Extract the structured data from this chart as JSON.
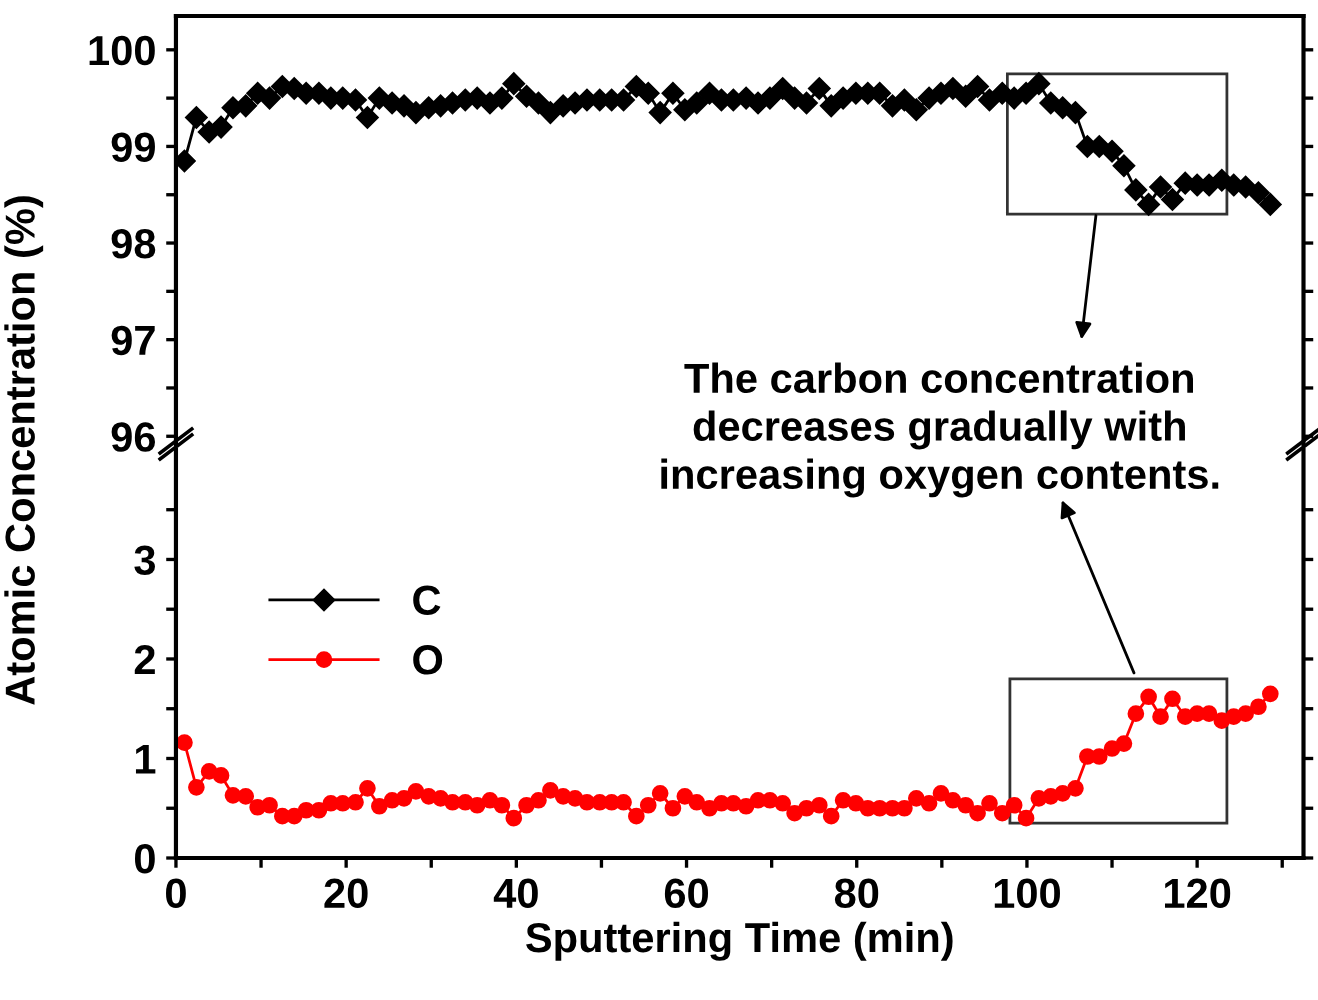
{
  "chart_data": [
    {
      "type": "line",
      "ylabel": "Atomic Concentration (%)",
      "marker": "diamond",
      "line_style": "solid",
      "tick_labels": "y",
      "annotations": [
        "The carbon concentration\ndecreases gradually with\nincreasing oxygen contents."
      ],
      "xlim": [
        0,
        132.5
      ],
      "ylim": [
        95.92,
        100.35
      ],
      "yticks": [
        96,
        {
          "value": 96.5,
          "label": null
        },
        97,
        {
          "value": 97.5,
          "label": null
        },
        98,
        {
          "value": 98.5,
          "label": null
        },
        99,
        {
          "value": 99.5,
          "label": null
        },
        100
      ],
      "series": [
        {
          "name": "C",
          "color": "#000000",
          "x": [
            1,
            2.4,
            3.9,
            5.3,
            6.7,
            8.2,
            9.6,
            11,
            12.5,
            13.9,
            15.3,
            16.8,
            18.2,
            19.6,
            21.1,
            22.5,
            23.9,
            25.4,
            26.8,
            28.2,
            29.7,
            31.1,
            32.5,
            34,
            35.4,
            36.9,
            38.3,
            39.7,
            41.2,
            42.6,
            44,
            45.5,
            46.9,
            48.3,
            49.8,
            51.2,
            52.6,
            54.1,
            55.5,
            56.9,
            58.4,
            59.8,
            61.2,
            62.7,
            64.1,
            65.5,
            67,
            68.4,
            69.8,
            71.3,
            72.7,
            74.1,
            75.6,
            77,
            78.4,
            79.9,
            81.3,
            82.7,
            84.2,
            85.6,
            87,
            88.5,
            89.9,
            91.3,
            92.8,
            94.2,
            95.6,
            97.1,
            98.5,
            99.9,
            101.4,
            102.8,
            104.2,
            105.7,
            107.1,
            108.5,
            110,
            111.4,
            112.8,
            114.3,
            115.7,
            117.1,
            118.6,
            120,
            121.4,
            122.9,
            124.3,
            125.7,
            127.2,
            128.6
          ],
          "values": [
            98.85,
            99.3,
            99.15,
            99.2,
            99.4,
            99.42,
            99.55,
            99.5,
            99.62,
            99.6,
            99.55,
            99.55,
            99.5,
            99.5,
            99.48,
            99.3,
            99.5,
            99.45,
            99.42,
            99.35,
            99.4,
            99.42,
            99.45,
            99.48,
            99.5,
            99.45,
            99.5,
            99.65,
            99.52,
            99.45,
            99.35,
            99.42,
            99.45,
            99.48,
            99.48,
            99.48,
            99.48,
            99.62,
            99.55,
            99.35,
            99.55,
            99.38,
            99.45,
            99.55,
            99.48,
            99.48,
            99.5,
            99.45,
            99.5,
            99.6,
            99.5,
            99.45,
            99.6,
            99.42,
            99.5,
            99.55,
            99.55,
            99.55,
            99.42,
            99.48,
            99.38,
            99.5,
            99.55,
            99.6,
            99.52,
            99.62,
            99.48,
            99.55,
            99.5,
            99.55,
            99.65,
            99.45,
            99.4,
            99.35,
            99.0,
            99.0,
            98.95,
            98.8,
            98.55,
            98.4,
            98.58,
            98.45,
            98.62,
            98.6,
            98.6,
            98.65,
            98.6,
            98.58,
            98.52,
            98.4
          ]
        }
      ]
    },
    {
      "type": "line",
      "xlabel": "Sputtering Time (min)",
      "marker": "circle",
      "line_style": "solid",
      "legend": "center left",
      "xlim": [
        0,
        132.5
      ],
      "ylim": [
        0,
        4.1
      ],
      "xticks": [
        0,
        {
          "value": 10,
          "label": null
        },
        20,
        {
          "value": 30,
          "label": null
        },
        40,
        {
          "value": 50,
          "label": null
        },
        60,
        {
          "value": 70,
          "label": null
        },
        80,
        {
          "value": 90,
          "label": null
        },
        100,
        {
          "value": 110,
          "label": null
        },
        120,
        {
          "value": 130,
          "label": null
        }
      ],
      "yticks": [
        0,
        {
          "value": 0.5,
          "label": null
        },
        1,
        {
          "value": 1.5,
          "label": null
        },
        2,
        {
          "value": 2.5,
          "label": null
        },
        3,
        {
          "value": 3.5,
          "label": null
        }
      ],
      "series": [
        {
          "name": "O",
          "color": "#ff0000",
          "x": [
            1,
            2.4,
            3.9,
            5.3,
            6.7,
            8.2,
            9.6,
            11,
            12.5,
            13.9,
            15.3,
            16.8,
            18.2,
            19.6,
            21.1,
            22.5,
            23.9,
            25.4,
            26.8,
            28.2,
            29.7,
            31.1,
            32.5,
            34,
            35.4,
            36.9,
            38.3,
            39.7,
            41.2,
            42.6,
            44,
            45.5,
            46.9,
            48.3,
            49.8,
            51.2,
            52.6,
            54.1,
            55.5,
            56.9,
            58.4,
            59.8,
            61.2,
            62.7,
            64.1,
            65.5,
            67,
            68.4,
            69.8,
            71.3,
            72.7,
            74.1,
            75.6,
            77,
            78.4,
            79.9,
            81.3,
            82.7,
            84.2,
            85.6,
            87,
            88.5,
            89.9,
            91.3,
            92.8,
            94.2,
            95.6,
            97.1,
            98.5,
            99.9,
            101.4,
            102.8,
            104.2,
            105.7,
            107.1,
            108.5,
            110,
            111.4,
            112.8,
            114.3,
            115.7,
            117.1,
            118.6,
            120,
            121.4,
            122.9,
            124.3,
            125.7,
            127.2,
            128.6
          ],
          "values": [
            1.16,
            0.71,
            0.87,
            0.83,
            0.63,
            0.62,
            0.51,
            0.53,
            0.42,
            0.42,
            0.48,
            0.48,
            0.55,
            0.55,
            0.56,
            0.7,
            0.52,
            0.58,
            0.6,
            0.67,
            0.62,
            0.6,
            0.56,
            0.56,
            0.53,
            0.58,
            0.53,
            0.4,
            0.53,
            0.58,
            0.68,
            0.62,
            0.6,
            0.56,
            0.56,
            0.56,
            0.56,
            0.42,
            0.53,
            0.65,
            0.5,
            0.62,
            0.56,
            0.5,
            0.55,
            0.55,
            0.52,
            0.58,
            0.58,
            0.55,
            0.45,
            0.5,
            0.53,
            0.42,
            0.58,
            0.55,
            0.5,
            0.5,
            0.5,
            0.5,
            0.6,
            0.55,
            0.65,
            0.58,
            0.53,
            0.45,
            0.55,
            0.45,
            0.53,
            0.4,
            0.6,
            0.62,
            0.65,
            0.7,
            1.02,
            1.02,
            1.1,
            1.15,
            1.45,
            1.62,
            1.42,
            1.6,
            1.42,
            1.45,
            1.45,
            1.38,
            1.42,
            1.45,
            1.52,
            1.65
          ]
        }
      ]
    }
  ]
}
